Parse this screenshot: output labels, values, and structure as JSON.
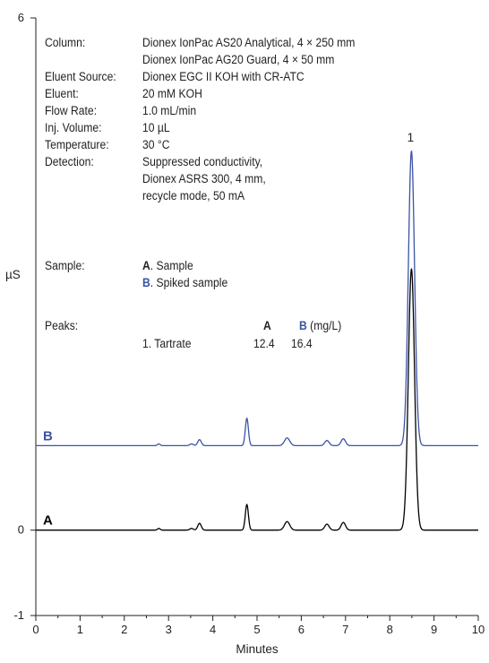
{
  "colors": {
    "trace_a": "#000000",
    "trace_b": "#3b53a4",
    "axis": "#231f20"
  },
  "method": {
    "column_label": "Column:",
    "column_line1": "Dionex IonPac AS20 Analytical, 4 × 250 mm",
    "column_line2": "Dionex IonPac AG20 Guard, 4 × 50 mm",
    "eluent_source_label": "Eluent Source:",
    "eluent_source": "Dionex EGC II KOH with CR-ATC",
    "eluent_label": "Eluent:",
    "eluent": "20 mM KOH",
    "flow_rate_label": "Flow Rate:",
    "flow_rate": "1.0 mL/min",
    "inj_volume_label": "Inj. Volume:",
    "inj_volume": "10 µL",
    "temperature_label": "Temperature:",
    "temperature": "30 °C",
    "detection_label": "Detection:",
    "detection_line1": "Suppressed conductivity,",
    "detection_line2": "Dionex ASRS 300, 4 mm,",
    "detection_line3": "recycle mode, 50 mA"
  },
  "sample": {
    "label": "Sample:",
    "a_letter": "A",
    "a_text": ". Sample",
    "b_letter": "B",
    "b_text": ". Spiked sample"
  },
  "peaks": {
    "label": "Peaks:",
    "col_a": "A",
    "col_b": "B",
    "unit": "(mg/L)",
    "rows": [
      {
        "name": "1. Tartrate",
        "a": "12.4",
        "b": "16.4"
      }
    ]
  },
  "chart_data": {
    "type": "line",
    "xlabel": "Minutes",
    "ylabel": "µS",
    "xlim": [
      0,
      10
    ],
    "ylim": [
      -1,
      6
    ],
    "x_ticks": [
      "0",
      "1",
      "2",
      "3",
      "4",
      "5",
      "6",
      "7",
      "8",
      "9",
      "10"
    ],
    "y_ticks": [
      {
        "value": -1,
        "label": "-1"
      },
      {
        "value": 0,
        "label": "0"
      },
      {
        "value": 6,
        "label": "6"
      }
    ],
    "peak_labels": [
      {
        "label": "1",
        "x": 8.49,
        "y": 4.47
      }
    ],
    "series": [
      {
        "name": "B",
        "baseline": 0.99,
        "color": "#3b53a4",
        "peaks": [
          {
            "x": 2.78,
            "height": 0.02,
            "width": 0.03
          },
          {
            "x": 3.52,
            "height": 0.02,
            "width": 0.04
          },
          {
            "x": 3.7,
            "height": 0.07,
            "width": 0.04
          },
          {
            "x": 4.77,
            "height": 0.32,
            "width": 0.035
          },
          {
            "x": 5.68,
            "height": 0.09,
            "width": 0.06
          },
          {
            "x": 6.58,
            "height": 0.06,
            "width": 0.05
          },
          {
            "x": 6.95,
            "height": 0.08,
            "width": 0.05
          },
          {
            "x": 8.49,
            "height": 3.45,
            "width": 0.07
          }
        ]
      },
      {
        "name": "A",
        "baseline": 0.0,
        "color": "#000000",
        "peaks": [
          {
            "x": 2.78,
            "height": 0.02,
            "width": 0.03
          },
          {
            "x": 3.52,
            "height": 0.02,
            "width": 0.04
          },
          {
            "x": 3.7,
            "height": 0.08,
            "width": 0.04
          },
          {
            "x": 4.77,
            "height": 0.3,
            "width": 0.035
          },
          {
            "x": 5.68,
            "height": 0.1,
            "width": 0.06
          },
          {
            "x": 6.58,
            "height": 0.07,
            "width": 0.05
          },
          {
            "x": 6.95,
            "height": 0.09,
            "width": 0.05
          },
          {
            "x": 8.49,
            "height": 3.06,
            "width": 0.07
          }
        ]
      }
    ],
    "grid": false
  }
}
